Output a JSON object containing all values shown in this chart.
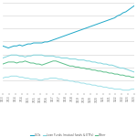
{
  "title": "",
  "legend_labels": [
    "CLOs",
    "Loan Funds (mutual funds & ETFs)",
    "Other"
  ],
  "legend_colors": [
    "#2ab0c8",
    "#7fd4dc",
    "#5bbf8f"
  ],
  "x_labels": [
    "1/13",
    "7/13",
    "1/14",
    "7/14",
    "1/15",
    "7/15",
    "1/16",
    "7/16",
    "1/17",
    "7/17",
    "1/18",
    "7/18",
    "1/19",
    "7/19",
    "1/20",
    "7/20",
    "1/21",
    "7/21",
    "1/22",
    "7/22",
    "1/23",
    "7/23"
  ],
  "background_color": "#ffffff",
  "grid_color": "#d0d0d0",
  "line_width": 0.7,
  "clo_data": [
    52,
    51,
    50,
    51,
    52,
    52,
    53,
    52,
    53,
    54,
    54,
    55,
    55,
    55,
    55,
    56,
    56,
    57,
    58,
    59,
    60,
    61,
    62,
    63,
    64,
    65,
    66,
    67,
    68,
    69,
    70,
    71,
    72,
    73,
    74,
    75,
    76,
    77,
    78,
    79,
    80,
    82,
    83,
    85,
    86,
    88,
    90,
    92
  ],
  "loan_funds_data": [
    40,
    41,
    42,
    43,
    43,
    43,
    42,
    42,
    41,
    42,
    42,
    43,
    43,
    43,
    43,
    42,
    42,
    42,
    42,
    41,
    41,
    40,
    40,
    40,
    39,
    39,
    39,
    38,
    38,
    38,
    37,
    37,
    36,
    36,
    35,
    35,
    34,
    34,
    33,
    33,
    32,
    31,
    30,
    30,
    29,
    28,
    27,
    26
  ],
  "other_data": [
    34,
    35,
    36,
    36,
    36,
    35,
    36,
    36,
    37,
    36,
    35,
    35,
    34,
    34,
    33,
    34,
    35,
    36,
    37,
    37,
    36,
    35,
    34,
    33,
    32,
    32,
    31,
    31,
    30,
    30,
    29,
    29,
    28,
    28,
    27,
    27,
    26,
    26,
    25,
    25,
    24,
    24,
    23,
    23,
    22,
    22,
    21,
    21
  ],
  "bottom_data": [
    20,
    21,
    21,
    22,
    22,
    22,
    21,
    21,
    20,
    20,
    19,
    19,
    19,
    18,
    18,
    19,
    19,
    20,
    20,
    20,
    19,
    19,
    18,
    18,
    17,
    17,
    16,
    16,
    15,
    15,
    14,
    14,
    13,
    13,
    12,
    12,
    11,
    11,
    10,
    10,
    9,
    9,
    9,
    8,
    8,
    8,
    9,
    9
  ],
  "n_points": 48,
  "ylim": [
    5,
    95
  ],
  "n_gridlines": 8
}
